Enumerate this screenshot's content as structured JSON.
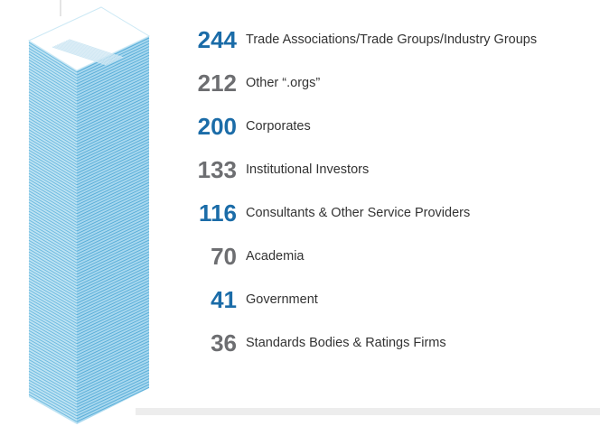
{
  "items": [
    {
      "value": 244,
      "label": "Trade Associations/Trade Groups/Industry Groups",
      "color": "#1b6ca8"
    },
    {
      "value": 212,
      "label": "Other “.orgs”",
      "color": "#6d6e71"
    },
    {
      "value": 200,
      "label": "Corporates",
      "color": "#1b6ca8"
    },
    {
      "value": 133,
      "label": "Institutional Investors",
      "color": "#6d6e71"
    },
    {
      "value": 116,
      "label": "Consultants & Other Service Providers",
      "color": "#1b6ca8"
    },
    {
      "value": 70,
      "label": "Academia",
      "color": "#6d6e71"
    },
    {
      "value": 41,
      "label": "Government",
      "color": "#1b6ca8"
    },
    {
      "value": 36,
      "label": "Standards Bodies & Ratings Firms",
      "color": "#6d6e71"
    }
  ]
}
